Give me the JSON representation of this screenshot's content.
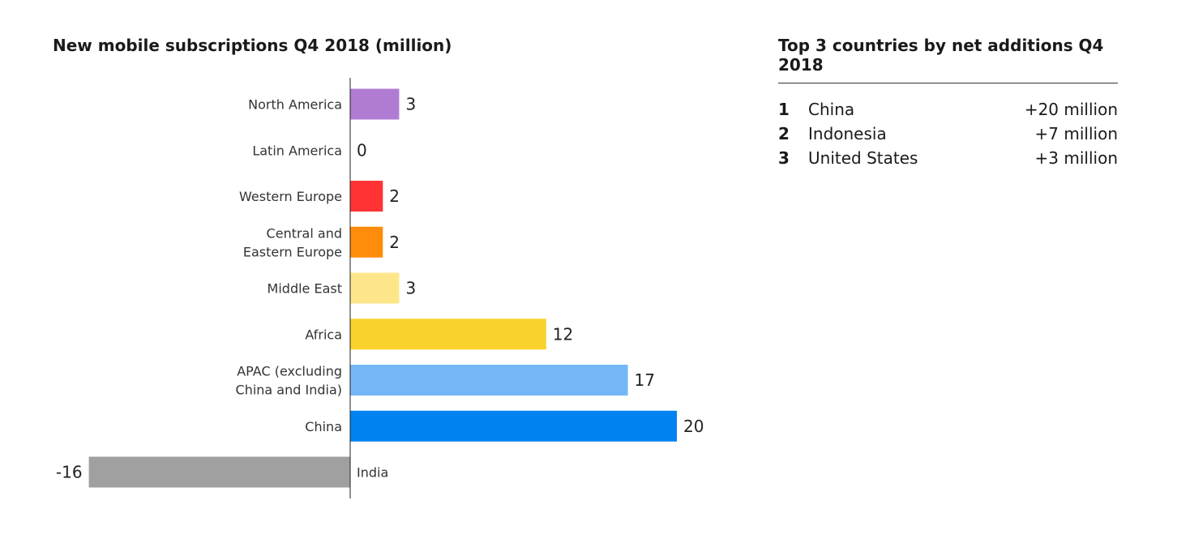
{
  "chart_data": {
    "type": "bar",
    "orientation": "horizontal",
    "title": "New mobile subscriptions Q4 2018 (million)",
    "categories": [
      [
        "North America"
      ],
      [
        "Latin America"
      ],
      [
        "Western Europe"
      ],
      [
        "Central and",
        "Eastern Europe"
      ],
      [
        "Middle East"
      ],
      [
        "Africa"
      ],
      [
        "APAC (excluding",
        "China and India)"
      ],
      [
        "China"
      ],
      [
        "India"
      ]
    ],
    "values": [
      3,
      0,
      2,
      2,
      3,
      12,
      17,
      20,
      -16
    ],
    "value_labels": [
      "3",
      "0",
      "2",
      "2",
      "3",
      "12",
      "17",
      "20",
      "-16"
    ],
    "colors": [
      "#b07cd3",
      "#ffffff",
      "#ff3333",
      "#ff8c0a",
      "#fde68a",
      "#f9d22d",
      "#74b7f6",
      "#0082f0",
      "#a0a0a0"
    ],
    "xlim": [
      -16,
      20
    ],
    "grid": false,
    "legend": "none"
  },
  "panel": {
    "title": "Top 3 countries by net additions Q4 2018",
    "rows": [
      {
        "rank": "1",
        "country": "China",
        "value": "+20 million"
      },
      {
        "rank": "2",
        "country": "Indonesia",
        "value": "+7 million"
      },
      {
        "rank": "3",
        "country": "United States",
        "value": "+3 million"
      }
    ]
  }
}
